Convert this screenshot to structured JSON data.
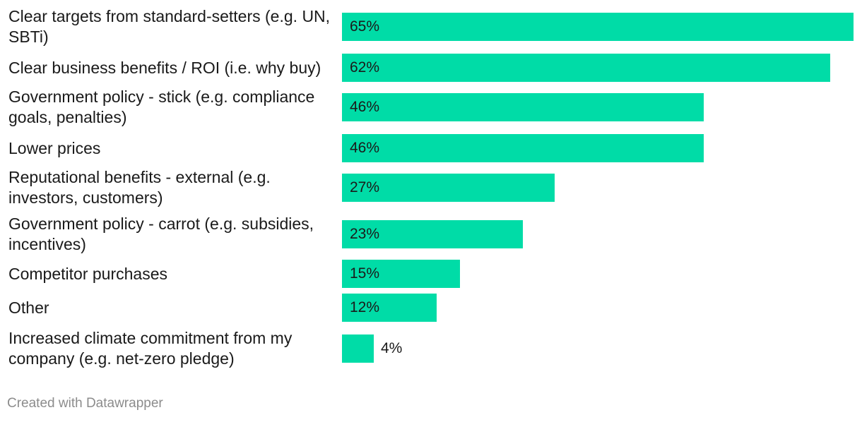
{
  "chart_data": {
    "type": "bar",
    "orientation": "horizontal",
    "title": "",
    "xlabel": "",
    "ylabel": "",
    "xlim": [
      0,
      65
    ],
    "value_suffix": "%",
    "bar_color": "#00dca7",
    "categories": [
      "Clear targets from standard-setters (e.g. UN, SBTi)",
      "Clear business benefits / ROI (i.e. why buy)",
      "Government policy - stick (e.g. compliance goals, penalties)",
      "Lower prices",
      "Reputational benefits - external (e.g. investors, customers)",
      "Government policy - carrot (e.g. subsidies, incentives)",
      "Competitor purchases",
      "Other",
      "Increased climate commitment from my company (e.g. net-zero pledge)"
    ],
    "values": [
      65,
      62,
      46,
      46,
      27,
      23,
      15,
      12,
      4
    ],
    "labels": [
      "65%",
      "62%",
      "46%",
      "46%",
      "27%",
      "23%",
      "15%",
      "12%",
      "4%"
    ]
  },
  "footer": {
    "credit": "Created with Datawrapper"
  }
}
